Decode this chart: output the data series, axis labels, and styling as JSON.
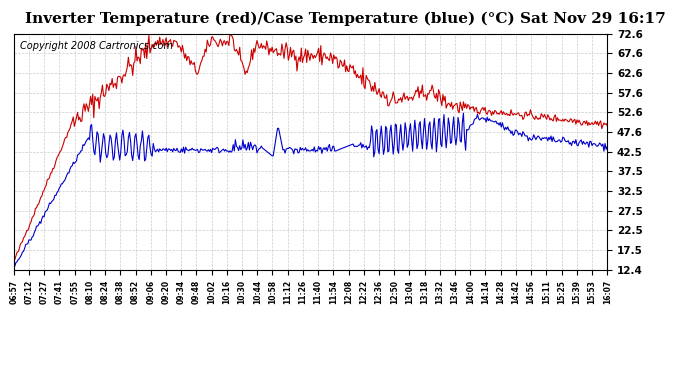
{
  "title": "Inverter Temperature (red)/Case Temperature (blue) (°C) Sat Nov 29 16:17",
  "copyright": "Copyright 2008 Cartronics.com",
  "yticks": [
    12.4,
    17.5,
    22.5,
    27.5,
    32.5,
    37.5,
    42.5,
    47.6,
    52.6,
    57.6,
    62.6,
    67.6,
    72.6
  ],
  "ymin": 12.4,
  "ymax": 72.6,
  "xtick_labels": [
    "06:57",
    "07:12",
    "07:27",
    "07:41",
    "07:55",
    "08:10",
    "08:24",
    "08:38",
    "08:52",
    "09:06",
    "09:20",
    "09:34",
    "09:48",
    "10:02",
    "10:16",
    "10:30",
    "10:44",
    "10:58",
    "11:12",
    "11:26",
    "11:40",
    "11:54",
    "12:08",
    "12:22",
    "12:36",
    "12:50",
    "13:04",
    "13:18",
    "13:32",
    "13:46",
    "14:00",
    "14:14",
    "14:28",
    "14:42",
    "14:56",
    "15:11",
    "15:25",
    "15:39",
    "15:53",
    "16:07"
  ],
  "bg_color": "#ffffff",
  "plot_bg_color": "#ffffff",
  "grid_color": "#cccccc",
  "red_color": "#cc0000",
  "blue_color": "#0000cc",
  "title_fontsize": 11,
  "copyright_fontsize": 7
}
